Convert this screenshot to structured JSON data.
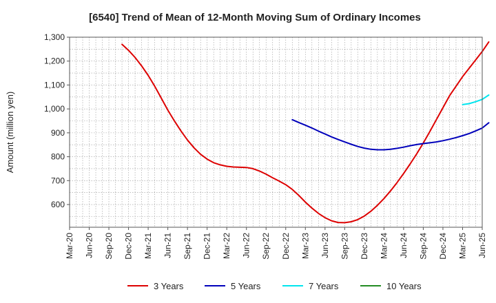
{
  "chart_data": {
    "type": "line",
    "title": "[6540]  Trend of Mean of 12-Month Moving Sum of Ordinary Incomes",
    "xlabel": "",
    "ylabel": "Amount (million yen)",
    "ylim": [
      505,
      1300
    ],
    "y_ticks": [
      600,
      700,
      800,
      900,
      1000,
      1100,
      1200,
      1300
    ],
    "y_tick_labels": [
      "600",
      "700",
      "800",
      "900",
      "1,000",
      "1,100",
      "1,200",
      "1,300"
    ],
    "x_tick_labels": [
      "Mar-20",
      "Jun-20",
      "Sep-20",
      "Dec-20",
      "Mar-21",
      "Jun-21",
      "Sep-21",
      "Dec-21",
      "Mar-22",
      "Jun-22",
      "Sep-22",
      "Dec-22",
      "Mar-23",
      "Jun-23",
      "Sep-23",
      "Dec-23",
      "Mar-24",
      "Jun-24",
      "Sep-24",
      "Dec-24",
      "Mar-25",
      "Jun-25"
    ],
    "grid": true,
    "legend_position": "bottom",
    "series": [
      {
        "name": "3 Years",
        "color": "#dd0000",
        "points": [
          [
            8,
            1270
          ],
          [
            9,
            1245
          ],
          [
            10,
            1215
          ],
          [
            11,
            1180
          ],
          [
            12,
            1140
          ],
          [
            13,
            1095
          ],
          [
            14,
            1045
          ],
          [
            15,
            995
          ],
          [
            16,
            950
          ],
          [
            17,
            908
          ],
          [
            18,
            870
          ],
          [
            19,
            837
          ],
          [
            20,
            810
          ],
          [
            21,
            790
          ],
          [
            22,
            775
          ],
          [
            23,
            766
          ],
          [
            24,
            760
          ],
          [
            25,
            757
          ],
          [
            26,
            756
          ],
          [
            27,
            755
          ],
          [
            28,
            750
          ],
          [
            29,
            740
          ],
          [
            30,
            727
          ],
          [
            31,
            712
          ],
          [
            32,
            698
          ],
          [
            33,
            683
          ],
          [
            34,
            663
          ],
          [
            35,
            638
          ],
          [
            36,
            610
          ],
          [
            37,
            585
          ],
          [
            38,
            563
          ],
          [
            39,
            545
          ],
          [
            40,
            532
          ],
          [
            41,
            525
          ],
          [
            42,
            524
          ],
          [
            43,
            528
          ],
          [
            44,
            537
          ],
          [
            45,
            552
          ],
          [
            46,
            572
          ],
          [
            47,
            597
          ],
          [
            48,
            625
          ],
          [
            49,
            657
          ],
          [
            50,
            692
          ],
          [
            51,
            730
          ],
          [
            52,
            770
          ],
          [
            53,
            812
          ],
          [
            54,
            857
          ],
          [
            55,
            905
          ],
          [
            56,
            955
          ],
          [
            57,
            1005
          ],
          [
            58,
            1055
          ],
          [
            59,
            1095
          ],
          [
            60,
            1135
          ],
          [
            61,
            1170
          ],
          [
            62,
            1205
          ],
          [
            63,
            1240
          ],
          [
            64,
            1280
          ]
        ]
      },
      {
        "name": "5 Years",
        "color": "#0000bb",
        "points": [
          [
            34,
            955
          ],
          [
            35,
            943
          ],
          [
            36,
            932
          ],
          [
            37,
            920
          ],
          [
            38,
            907
          ],
          [
            39,
            895
          ],
          [
            40,
            883
          ],
          [
            41,
            872
          ],
          [
            42,
            862
          ],
          [
            43,
            852
          ],
          [
            44,
            843
          ],
          [
            45,
            836
          ],
          [
            46,
            831
          ],
          [
            47,
            829
          ],
          [
            48,
            829
          ],
          [
            49,
            831
          ],
          [
            50,
            835
          ],
          [
            51,
            840
          ],
          [
            52,
            846
          ],
          [
            53,
            851
          ],
          [
            54,
            855
          ],
          [
            55,
            858
          ],
          [
            56,
            862
          ],
          [
            57,
            867
          ],
          [
            58,
            873
          ],
          [
            59,
            880
          ],
          [
            60,
            888
          ],
          [
            61,
            897
          ],
          [
            62,
            908
          ],
          [
            63,
            920
          ],
          [
            64,
            942
          ]
        ]
      },
      {
        "name": "7 Years",
        "color": "#00e5ee",
        "points": [
          [
            60,
            1018
          ],
          [
            61,
            1022
          ],
          [
            62,
            1030
          ],
          [
            63,
            1040
          ],
          [
            64,
            1058
          ]
        ]
      },
      {
        "name": "10 Years",
        "color": "#228b22",
        "points": []
      }
    ]
  }
}
